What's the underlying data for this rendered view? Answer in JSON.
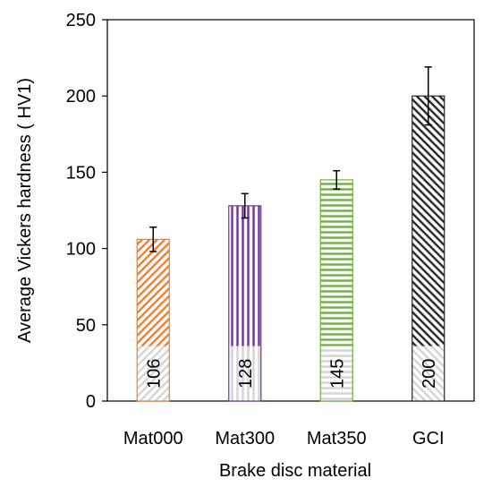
{
  "chart_data": {
    "type": "bar",
    "title": "",
    "xlabel": "Brake disc material",
    "ylabel": "Average Vickers hardness ( HV1)",
    "categories": [
      "Mat000",
      "Mat300",
      "Mat350",
      "GCI"
    ],
    "values": [
      106,
      128,
      145,
      200
    ],
    "error": [
      8,
      8,
      6,
      19
    ],
    "data_labels": [
      "106",
      "128",
      "145",
      "200"
    ],
    "ylim": [
      0,
      250
    ],
    "yticks": [
      "0",
      "50",
      "100",
      "150",
      "200",
      "250"
    ],
    "ytick_values": [
      0,
      50,
      100,
      150,
      200,
      250
    ],
    "grid": false,
    "legend": "none",
    "bar_colors": [
      "#ED7D31",
      "#7030A0",
      "#70AD47",
      "#262626"
    ],
    "bar_patterns": [
      "diagonal-down",
      "vertical",
      "horizontal",
      "diagonal-up"
    ]
  }
}
